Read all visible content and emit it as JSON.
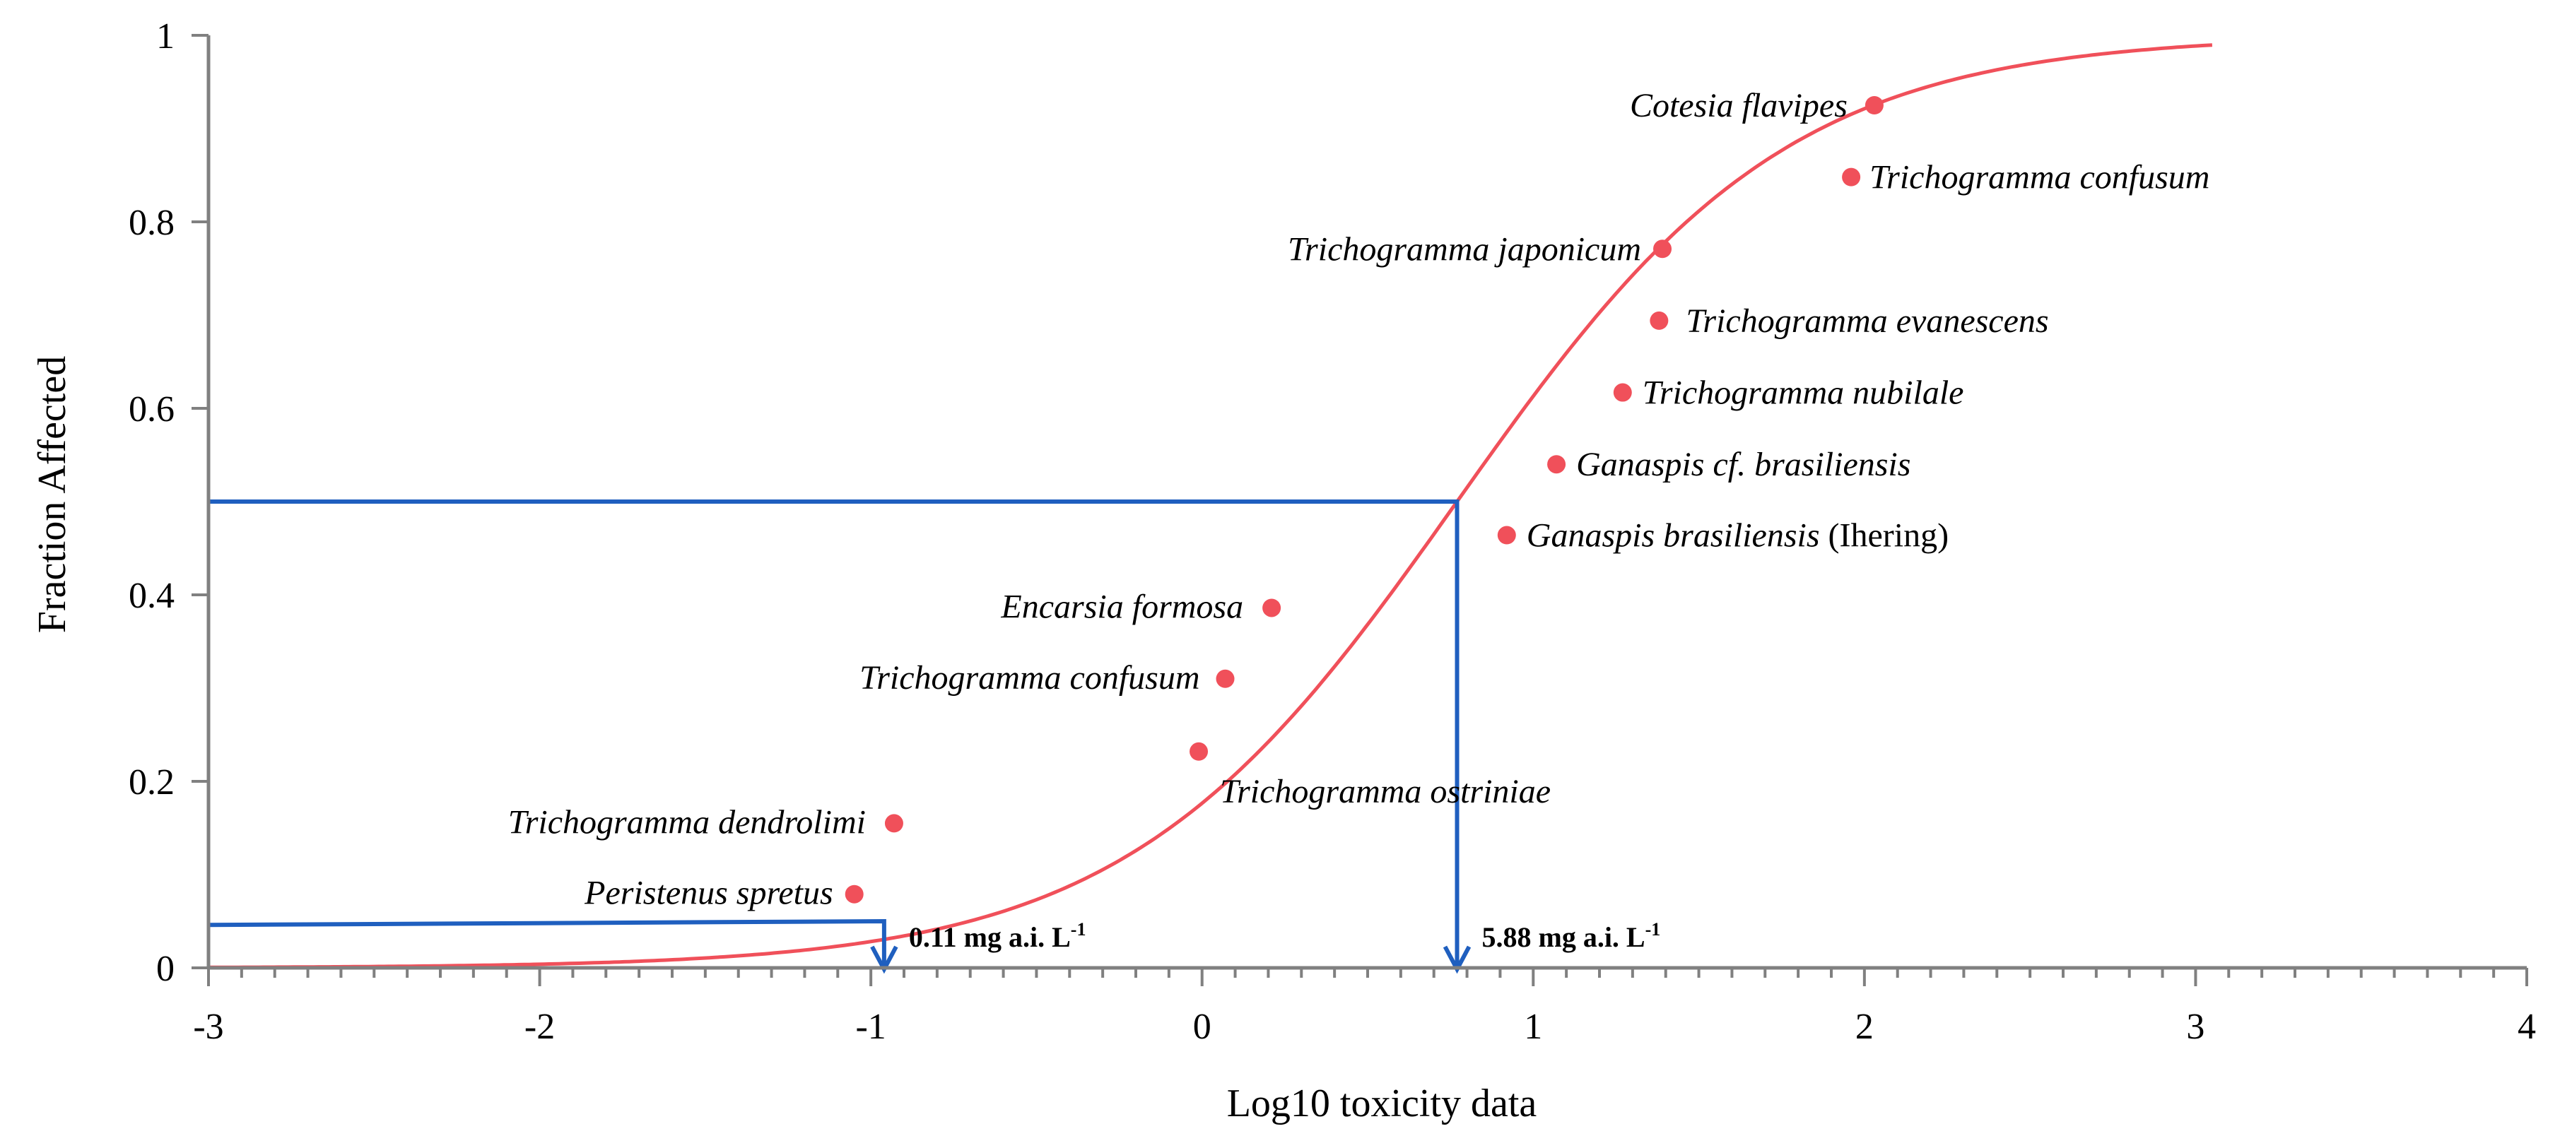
{
  "chart_data": {
    "type": "scatter",
    "xlabel": "Log10 toxicity data",
    "ylabel": "Fraction Affected",
    "xlim": [
      -3,
      4
    ],
    "ylim": [
      0,
      1
    ],
    "x_ticks": [
      -3,
      -2,
      -1,
      0,
      1,
      2,
      3,
      4
    ],
    "y_ticks": [
      0,
      0.2,
      0.4,
      0.6,
      0.8,
      1
    ],
    "x_tick_labels": [
      "-3",
      "-2",
      "-1",
      "0",
      "1",
      "2",
      "3",
      "4"
    ],
    "y_tick_labels": [
      "0",
      "0.2",
      "0.4",
      "0.6",
      "0.8",
      "1"
    ],
    "grid": false,
    "colors": {
      "points": "#f0505a",
      "curve": "#f0505a",
      "guides": "#1f5fbf",
      "axis": "#808080"
    },
    "fitted_curve": {
      "type": "log-logistic",
      "x50": 0.77,
      "slope": 2.0,
      "x_range": [
        -3,
        3.05
      ]
    },
    "points": [
      {
        "label": "Peristenus spretus",
        "label_suffix": "",
        "x": -1.05,
        "y": 0.079
      },
      {
        "label": "Trichogramma dendrolimi",
        "label_suffix": "",
        "x": -0.93,
        "y": 0.155
      },
      {
        "label": "Trichogramma ostriniae",
        "label_suffix": "",
        "x": -0.01,
        "y": 0.232
      },
      {
        "label": "Trichogramma confusum",
        "label_suffix": "",
        "x": 0.07,
        "y": 0.31
      },
      {
        "label": "Encarsia formosa",
        "label_suffix": "",
        "x": 0.21,
        "y": 0.386
      },
      {
        "label": "Ganaspis brasiliensis",
        "label_suffix": " (Ihering)",
        "x": 0.92,
        "y": 0.464
      },
      {
        "label": "Ganaspis cf. brasiliensis",
        "label_suffix": "",
        "x": 1.07,
        "y": 0.54
      },
      {
        "label": "Trichogramma nubilale",
        "label_suffix": "",
        "x": 1.27,
        "y": 0.617
      },
      {
        "label": "Trichogramma evanescens",
        "label_suffix": "",
        "x": 1.38,
        "y": 0.694
      },
      {
        "label": "Trichogramma  japonicum",
        "label_suffix": "",
        "x": 1.39,
        "y": 0.771
      },
      {
        "label": "Trichogramma confusum",
        "label_suffix": "",
        "x": 1.96,
        "y": 0.848
      },
      {
        "label": "Cotesia flavipes",
        "label_suffix": "",
        "x": 2.03,
        "y": 0.925
      }
    ],
    "annotations": [
      {
        "text": "0.11 mg a.i. L",
        "sup": "-1",
        "x": -0.96,
        "y": 0.05
      },
      {
        "text": "5.88 mg a.i. L",
        "sup": "-1",
        "x": 0.77,
        "y": 0.5
      }
    ]
  }
}
